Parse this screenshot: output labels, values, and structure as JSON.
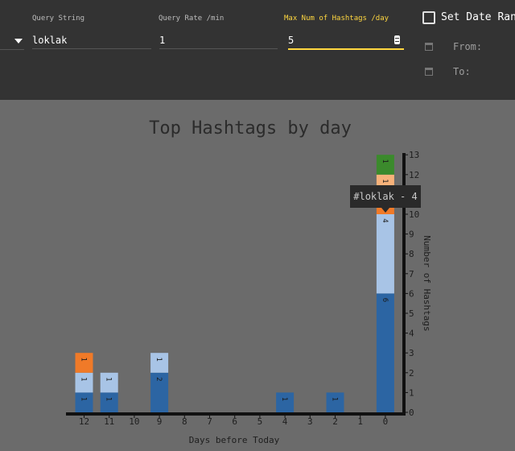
{
  "toolbar": {
    "query_string": {
      "label": "Query String",
      "value": "loklak"
    },
    "query_rate": {
      "label": "Query Rate /min",
      "value": "1"
    },
    "max_hashtags": {
      "label": "Max Num of Hashtags /day",
      "value": "5"
    },
    "date_range": {
      "label": "Set Date Range",
      "checked": false,
      "from_label": "From:",
      "to_label": "To:"
    }
  },
  "colors": {
    "toolbar_bg": "#333333",
    "chart_bg": "#6b6b6b",
    "focus_accent": "#ffd740"
  },
  "chart_data": {
    "type": "bar",
    "stacked": true,
    "title": "Top Hashtags by day",
    "xlabel": "Days before Today",
    "ylabel": "Number of Hashtags",
    "ylim": [
      0,
      13
    ],
    "y_axis_position": "right",
    "categories": [
      "12",
      "11",
      "10",
      "9",
      "8",
      "7",
      "6",
      "5",
      "4",
      "3",
      "2",
      "1",
      "0"
    ],
    "series": [
      {
        "color": "#2c65a3",
        "values": [
          1,
          1,
          0,
          2,
          0,
          0,
          0,
          0,
          1,
          0,
          1,
          0,
          6
        ]
      },
      {
        "color": "#a8c4e6",
        "values": [
          1,
          1,
          0,
          1,
          0,
          0,
          0,
          0,
          0,
          0,
          0,
          0,
          4
        ]
      },
      {
        "color": "#f07a28",
        "values": [
          1,
          0,
          0,
          0,
          0,
          0,
          0,
          0,
          0,
          0,
          0,
          0,
          1
        ]
      },
      {
        "color": "#f7b27a",
        "values": [
          0,
          0,
          0,
          0,
          0,
          0,
          0,
          0,
          0,
          0,
          0,
          0,
          1
        ]
      },
      {
        "color": "#3b8a2c",
        "values": [
          0,
          0,
          0,
          0,
          0,
          0,
          0,
          0,
          0,
          0,
          0,
          0,
          1
        ]
      }
    ],
    "tooltip": {
      "text": "#loklak - 4",
      "category": "0",
      "series_index": 1
    }
  }
}
